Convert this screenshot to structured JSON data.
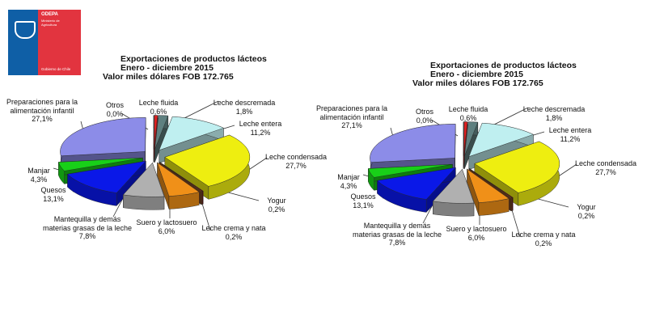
{
  "logo": {
    "org": "ODEPA",
    "ministry": "Ministerio de Agricultura",
    "government": "Gobierno de Chile",
    "colors": {
      "blue": "#0f5fa6",
      "red": "#e2343f"
    }
  },
  "chart_data": [
    {
      "type": "pie",
      "style": "3d-exploded",
      "title": [
        "Exportaciones de productos lácteos",
        "Enero - diciembre 2015",
        "Valor miles dólares FOB 172.765"
      ],
      "slices": [
        {
          "key": "otros",
          "label": "Otros",
          "value_label": "0,0%",
          "value": 0.0,
          "color": "#c0c0c0"
        },
        {
          "key": "fluida",
          "label": "Leche fluida",
          "value_label": "0,6%",
          "value": 0.6,
          "color": "#e02020"
        },
        {
          "key": "descremada",
          "label": "Leche descremada",
          "value_label": "1,8%",
          "value": 1.8,
          "color": "#5f8080"
        },
        {
          "key": "entera",
          "label": "Leche entera",
          "value_label": "11,2%",
          "value": 11.2,
          "color": "#bfeff0"
        },
        {
          "key": "condensada",
          "label": "Leche condensada",
          "value_label": "27,7%",
          "value": 27.7,
          "color": "#eeee10"
        },
        {
          "key": "yogur",
          "label": "Yogur",
          "value_label": "0,2%",
          "value": 0.2,
          "color": "#7a1010"
        },
        {
          "key": "crema",
          "label": "Leche crema y nata",
          "value_label": "0,2%",
          "value": 0.2,
          "color": "#8a4a20"
        },
        {
          "key": "suero",
          "label": "Suero y lactosuero",
          "value_label": "6,0%",
          "value": 6.0,
          "color": "#f09018"
        },
        {
          "key": "mantequilla",
          "label": "Mantequilla y demás materias grasas de la leche",
          "value_label": "7,8%",
          "value": 7.8,
          "color": "#b0b0b0"
        },
        {
          "key": "quesos",
          "label": "Quesos",
          "value_label": "13,1%",
          "value": 13.1,
          "color": "#0a18e8"
        },
        {
          "key": "manjar",
          "label": "Manjar",
          "value_label": "4,3%",
          "value": 4.3,
          "color": "#18d018"
        },
        {
          "key": "preparaciones",
          "label": "Preparaciones para la alimentación infantil",
          "value_label": "27,1%",
          "value": 27.1,
          "color": "#8c8ce8"
        }
      ]
    }
  ]
}
